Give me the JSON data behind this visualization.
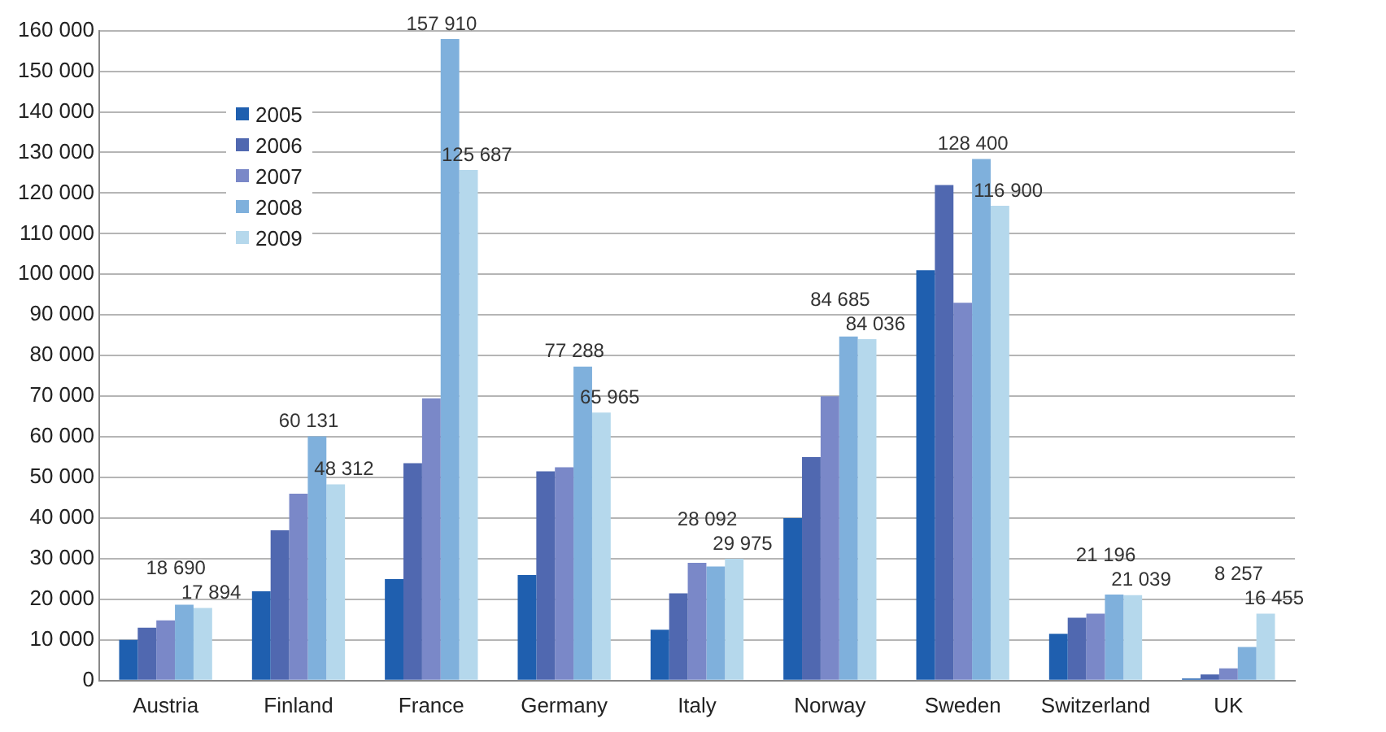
{
  "chart_data": {
    "type": "bar",
    "categories": [
      "Austria",
      "Finland",
      "France",
      "Germany",
      "Italy",
      "Norway",
      "Sweden",
      "Switzerland",
      "UK"
    ],
    "series": [
      {
        "name": "2005",
        "color": "#1f5faf",
        "values": [
          10000,
          22000,
          25000,
          26000,
          12500,
          40000,
          101000,
          11500,
          500
        ]
      },
      {
        "name": "2006",
        "color": "#5068b0",
        "values": [
          13000,
          37000,
          53500,
          51500,
          21500,
          55000,
          122000,
          15500,
          1500
        ]
      },
      {
        "name": "2007",
        "color": "#7a88c8",
        "values": [
          14800,
          46000,
          69500,
          52500,
          29000,
          70000,
          93000,
          16500,
          3000
        ]
      },
      {
        "name": "2008",
        "color": "#7fb0dc",
        "values": [
          18690,
          60131,
          157910,
          77288,
          28092,
          84685,
          128400,
          21196,
          8257
        ],
        "value_labels": [
          "18 690",
          "60 131",
          "157 910",
          "77 288",
          "28 092",
          "84 685",
          "128 400",
          "21 196",
          "8 257"
        ]
      },
      {
        "name": "2009",
        "color": "#b5d8ec",
        "values": [
          17894,
          48312,
          125687,
          65965,
          29975,
          84036,
          116900,
          21039,
          16455
        ],
        "value_labels": [
          "17 894",
          "48 312",
          "125 687",
          "65 965",
          "29 975",
          "84 036",
          "116 900",
          "21 039",
          "16 455"
        ]
      }
    ],
    "ylim": [
      0,
      160000
    ],
    "yticks": [
      {
        "value": 0,
        "label": "0"
      },
      {
        "value": 10000,
        "label": "10 000"
      },
      {
        "value": 20000,
        "label": "20 000"
      },
      {
        "value": 30000,
        "label": "30 000"
      },
      {
        "value": 40000,
        "label": "40 000"
      },
      {
        "value": 50000,
        "label": "50 000"
      },
      {
        "value": 60000,
        "label": "60 000"
      },
      {
        "value": 70000,
        "label": "70 000"
      },
      {
        "value": 80000,
        "label": "80 000"
      },
      {
        "value": 90000,
        "label": "90 000"
      },
      {
        "value": 100000,
        "label": "100 000"
      },
      {
        "value": 110000,
        "label": "110 000"
      },
      {
        "value": 120000,
        "label": "120 000"
      },
      {
        "value": 130000,
        "label": "130 000"
      },
      {
        "value": 140000,
        "label": "140 000"
      },
      {
        "value": 150000,
        "label": "150 000"
      },
      {
        "value": 160000,
        "label": "160 000"
      }
    ],
    "grid": "y",
    "legend": "top left"
  }
}
